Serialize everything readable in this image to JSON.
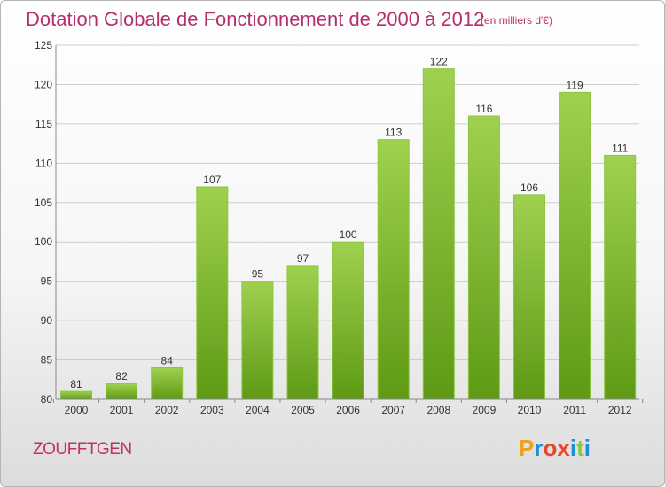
{
  "header": {
    "title": "Dotation Globale de Fonctionnement de 2000 à 2012",
    "subtitle": "(en milliers d'€)"
  },
  "footer": {
    "commune": "ZOUFFTGEN",
    "logo_letters": [
      "P",
      "r",
      "o",
      "x",
      "i",
      "t",
      "i"
    ]
  },
  "colors": {
    "title": "#b5306b",
    "bar_light": "#9fd14f",
    "bar_dark": "#5e9a15",
    "grid": "#cccccc",
    "logo": [
      "#f0a020",
      "#1e8fd6",
      "#e8462a",
      "#e8462a",
      "#1e8fd6",
      "#8cc63f",
      "#1e8fd6"
    ]
  },
  "chart_data": {
    "type": "bar",
    "title": "Dotation Globale de Fonctionnement de 2000 à 2012",
    "subtitle": "(en milliers d'€)",
    "categories": [
      "2000",
      "2001",
      "2002",
      "2003",
      "2004",
      "2005",
      "2006",
      "2007",
      "2008",
      "2009",
      "2010",
      "2011",
      "2012"
    ],
    "values": [
      81,
      82,
      84,
      107,
      95,
      97,
      100,
      113,
      122,
      116,
      106,
      119,
      111
    ],
    "ylim": [
      80,
      125
    ],
    "yticks": [
      80,
      85,
      90,
      95,
      100,
      105,
      110,
      115,
      120,
      125
    ],
    "grid": true,
    "data_labels": true
  }
}
